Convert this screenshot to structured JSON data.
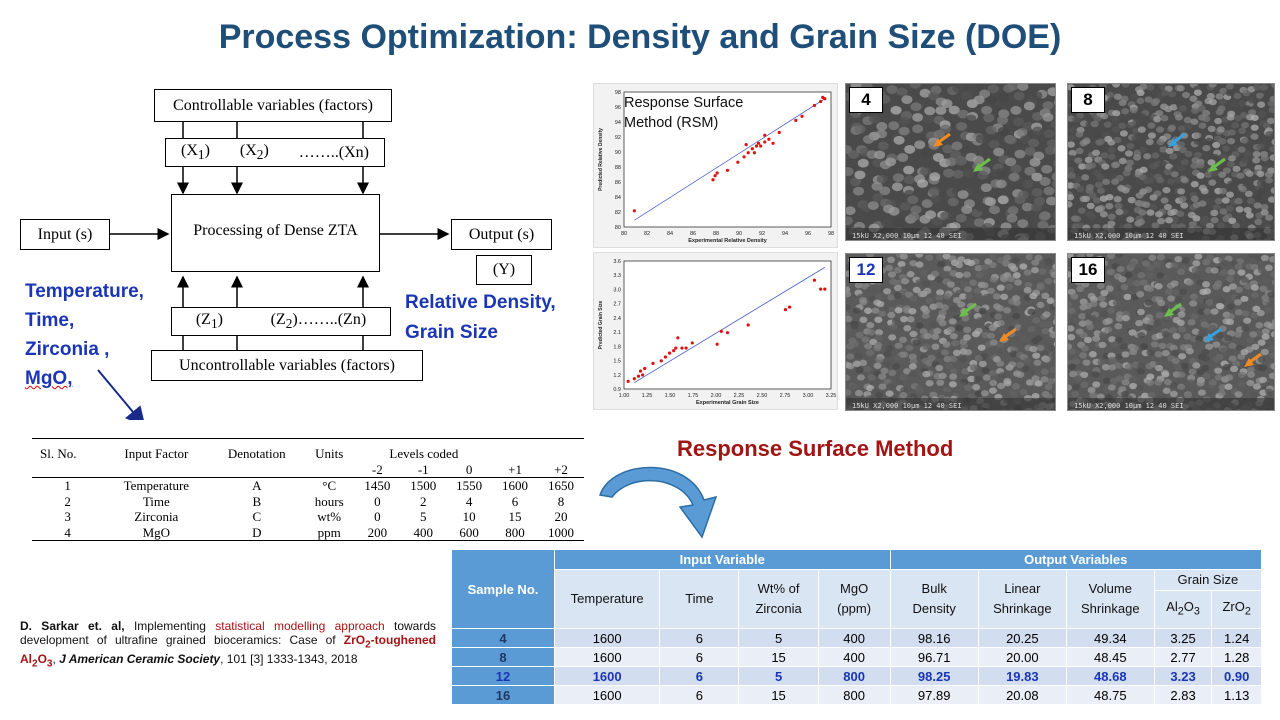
{
  "title": "Process Optimization: Density and Grain Size (DOE)",
  "diagram": {
    "controllable": "Controllable variables (factors)",
    "x_row": {
      "x1": "(X",
      "x1_sub": "1",
      "x2": "(X",
      "x2_sub": "2",
      "xn": "……..(Xn)"
    },
    "input": "Input (s)",
    "process": "Processing of Dense ZTA",
    "output": "Output (s)",
    "y": "(Y)",
    "z_row": {
      "z1": "(Z",
      "z1_sub": "1",
      "z2": "(Z",
      "z2_sub": "2",
      "zn": "……..(Zn)"
    },
    "uncontrollable": "Uncontrollable variables (factors)"
  },
  "inputs_list": [
    "Temperature,",
    "Time,",
    "Zirconia ,",
    "MgO,"
  ],
  "outputs_list": [
    "Relative Density,",
    "Grain Size"
  ],
  "rsm_plot": {
    "label_line1": "Response Surface",
    "label_line2": "Method (RSM)",
    "density_xlabel": "Experimental Relative Density",
    "density_ylabel": "Predicted Relative Density",
    "grain_xlabel": "Experimental Grain Size",
    "grain_ylabel": "Predicted Grain Size",
    "density_xticks": [
      "80",
      "82",
      "84",
      "86",
      "88",
      "90",
      "92",
      "94",
      "96",
      "98"
    ],
    "density_yticks": [
      "98",
      "96",
      "94",
      "92",
      "90",
      "88",
      "86",
      "84",
      "82",
      "80"
    ],
    "grain_xticks": [
      "1.00",
      "1.25",
      "1.50",
      "1.75",
      "2.00",
      "2.25",
      "2.50",
      "2.75",
      "3.00",
      "3.25"
    ],
    "grain_yticks": [
      "3.6",
      "3.3",
      "3.0",
      "2.7",
      "2.4",
      "2.1",
      "1.8",
      "1.5",
      "1.2",
      "0.9"
    ]
  },
  "sem_images": [
    {
      "label": "4",
      "footer": "15kU  X2,000  10μm    12 40 SEI",
      "arrow_colors": [
        "#f08a24",
        "#6cc04a"
      ]
    },
    {
      "label": "8",
      "footer": "15kU  X2,000  10μm    12 40 SEI",
      "arrow_colors": [
        "#3aa0d8",
        "#6cc04a"
      ]
    },
    {
      "label": "12",
      "footer": "15kU  X2,000  10μm    12 40 SEI",
      "arrow_colors": [
        "#6cc04a",
        "#f08a24"
      ]
    },
    {
      "label": "16",
      "footer": "15kU  X2,000  10μm    12 40 SEI",
      "arrow_colors": [
        "#6cc04a",
        "#3aa0d8",
        "#f08a24"
      ]
    }
  ],
  "rsm_title": "Response Surface Method",
  "factor_table": {
    "headers": [
      "Sl. No.",
      "Input Factor",
      "Denotation",
      "Units",
      "Levels coded"
    ],
    "levels": [
      "-2",
      "-1",
      "0",
      "+1",
      "+2"
    ],
    "rows": [
      [
        "1",
        "Temperature",
        "A",
        "°C",
        "1450",
        "1500",
        "1550",
        "1600",
        "1650"
      ],
      [
        "2",
        "Time",
        "B",
        "hours",
        "0",
        "2",
        "4",
        "6",
        "8"
      ],
      [
        "3",
        "Zirconia",
        "C",
        "wt%",
        "0",
        "5",
        "10",
        "15",
        "20"
      ],
      [
        "4",
        "MgO",
        "D",
        "ppm",
        "200",
        "400",
        "600",
        "800",
        "1000"
      ]
    ]
  },
  "reference": {
    "authors": "D. Sarkar et. al,",
    "text1": " Implementing ",
    "link": "statistical modelling approach",
    "text2": " towards development of ultrafine grained bioceramics: Case of ",
    "material": "ZrO",
    "material_sub": "2",
    "material_rest": "-toughened Al",
    "al_sub": "2",
    "o": "O",
    "o_sub": "3",
    "journal": "J American Ceramic Society",
    "details": ", 101 [3] 1333-1343, 2018"
  },
  "results_table": {
    "sample_header": "Sample No.",
    "input_header": "Input Variable",
    "output_header": "Output Variables",
    "cols": [
      "Temperature",
      "Time",
      "Wt% of Zirconia",
      "MgO (ppm)",
      "Bulk Density",
      "Linear Shrinkage",
      "Volume Shrinkage"
    ],
    "grain_size": "Grain Size",
    "al2o3": "Al",
    "al2o3_sub1": "2",
    "al2o3_o": "O",
    "al2o3_sub2": "3",
    "zro2": "ZrO",
    "zro2_sub": "2",
    "rows": [
      [
        "4",
        "1600",
        "6",
        "5",
        "400",
        "98.16",
        "20.25",
        "49.34",
        "3.25",
        "1.24"
      ],
      [
        "8",
        "1600",
        "6",
        "15",
        "400",
        "96.71",
        "20.00",
        "48.45",
        "2.77",
        "1.28"
      ],
      [
        "12",
        "1600",
        "6",
        "5",
        "800",
        "98.25",
        "19.83",
        "48.68",
        "3.23",
        "0.90"
      ],
      [
        "16",
        "1600",
        "6",
        "15",
        "800",
        "97.89",
        "20.08",
        "48.75",
        "2.83",
        "1.13"
      ]
    ]
  },
  "colors": {
    "title": "#1f4e79",
    "blue_text": "#1a36b5",
    "red_text": "#a31515",
    "table_header": "#5b9bd5"
  }
}
